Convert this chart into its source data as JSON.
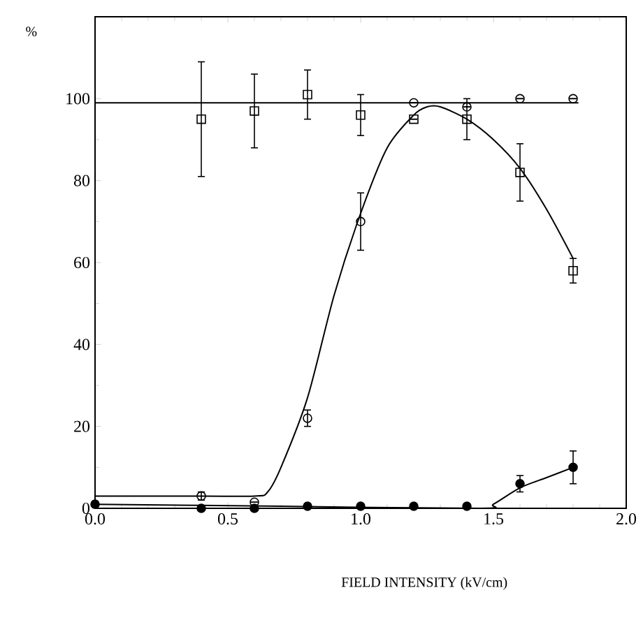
{
  "chart_data": {
    "type": "scatter",
    "xlabel": "FIELD INTENSITY (kV/cm)",
    "ylabel": "%",
    "xlim": [
      0,
      2.0
    ],
    "ylim": [
      0,
      120
    ],
    "xticks": [
      {
        "value": 0,
        "label": "0.0"
      },
      {
        "value": 0.5,
        "label": "0.5"
      },
      {
        "value": 1.0,
        "label": "1.0"
      },
      {
        "value": 1.5,
        "label": "1.5"
      },
      {
        "value": 2.0,
        "label": "2.0"
      }
    ],
    "yticks": [
      0,
      20,
      40,
      60,
      80,
      100
    ],
    "grid": false,
    "series": [
      {
        "marker": "square",
        "color": "#000000",
        "x": [
          0.4,
          0.6,
          0.8,
          1.0,
          1.2,
          1.4,
          1.6,
          1.8
        ],
        "values": [
          95,
          97,
          101,
          96,
          95,
          95,
          82,
          58
        ],
        "errors": [
          14,
          9,
          6,
          5,
          null,
          5,
          7,
          3
        ]
      },
      {
        "marker": "circle",
        "color": "#000000",
        "x": [
          0.4,
          0.6,
          0.8,
          1.0,
          1.2,
          1.4,
          1.6,
          1.8
        ],
        "values": [
          3,
          1.5,
          22,
          70,
          99,
          98,
          100,
          100
        ],
        "errors": [
          1,
          null,
          2,
          7,
          null,
          null,
          null,
          null
        ]
      },
      {
        "marker": "filled circle",
        "color": "#000000",
        "x": [
          0.0,
          0.4,
          0.6,
          0.8,
          1.0,
          1.2,
          1.4,
          1.6,
          1.8
        ],
        "values": [
          1,
          0,
          0,
          0.5,
          0.5,
          0.5,
          0.5,
          6,
          10
        ],
        "errors": [
          null,
          null,
          null,
          null,
          null,
          null,
          null,
          2,
          4
        ]
      },
      {
        "type": "line",
        "marker": "none",
        "color": "#000000",
        "x": [
          0.0,
          0.5,
          1.0,
          1.5,
          1.82
        ],
        "values": [
          99,
          99,
          99,
          99,
          99
        ]
      },
      {
        "type": "line",
        "marker": "none",
        "color": "#000000",
        "x": [
          0.0,
          0.3,
          0.6,
          0.65,
          0.7,
          0.8,
          0.9,
          1.0,
          1.1,
          1.2,
          1.25,
          1.3,
          1.4,
          1.5,
          1.6,
          1.7,
          1.8
        ],
        "values": [
          3,
          3,
          3,
          4,
          10,
          27,
          52,
          72,
          88,
          96,
          98,
          98,
          95,
          90,
          83,
          73,
          61
        ]
      },
      {
        "type": "line",
        "marker": "none",
        "color": "#000000",
        "x": [
          0.0,
          0.7,
          1.45,
          1.5,
          1.6,
          1.7,
          1.8
        ],
        "values": [
          1,
          0.5,
          0,
          1,
          5,
          7.5,
          10
        ]
      }
    ]
  }
}
